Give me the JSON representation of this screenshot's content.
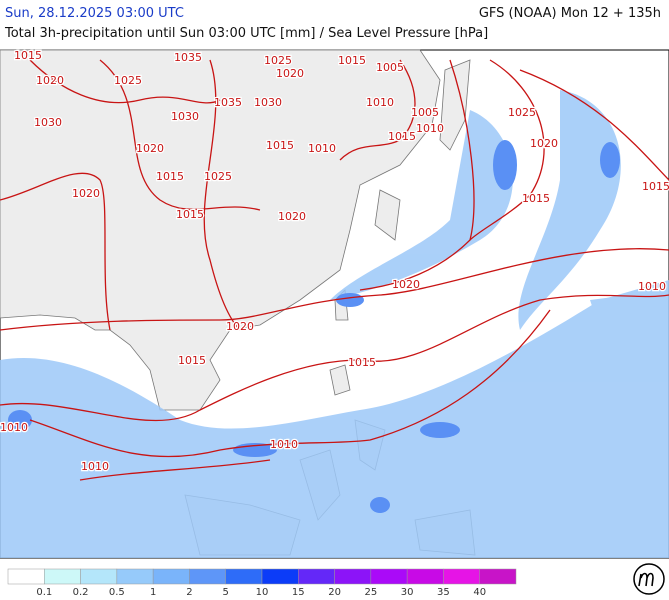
{
  "header": {
    "time": "Sun, 28.12.2025 03:00 UTC",
    "model": "GFS (NOAA) Mon 12 + 135h",
    "subtitle": "Total 3h-precipitation until Sun 03:00 UTC [mm] / Sea Level Pressure [hPa]"
  },
  "isobar_labels": [
    "1015",
    "1020",
    "1025",
    "1030",
    "1035",
    "1025",
    "1020",
    "1015",
    "1005",
    "1035",
    "1030",
    "1030",
    "1020",
    "1015",
    "1025",
    "1015",
    "1020",
    "1015",
    "1010",
    "1010",
    "1015",
    "1010",
    "1005",
    "1025",
    "1020",
    "1015",
    "1015",
    "1010",
    "1020",
    "1020",
    "1015",
    "1015",
    "1010",
    "1010",
    "1010",
    "1020"
  ],
  "legend": {
    "labels": [
      0.1,
      0.2,
      0.5,
      1,
      2,
      5,
      10,
      15,
      20,
      25,
      30,
      35,
      40
    ],
    "colors": [
      "#ffffff",
      "#cdf8f8",
      "#b4e6fa",
      "#96cafa",
      "#7ab4fa",
      "#5e96f8",
      "#2e6cf8",
      "#0c3cf8",
      "#6428f8",
      "#8c14f8",
      "#aa0af8",
      "#c80ae6",
      "#e614e6",
      "#c814c8"
    ]
  }
}
